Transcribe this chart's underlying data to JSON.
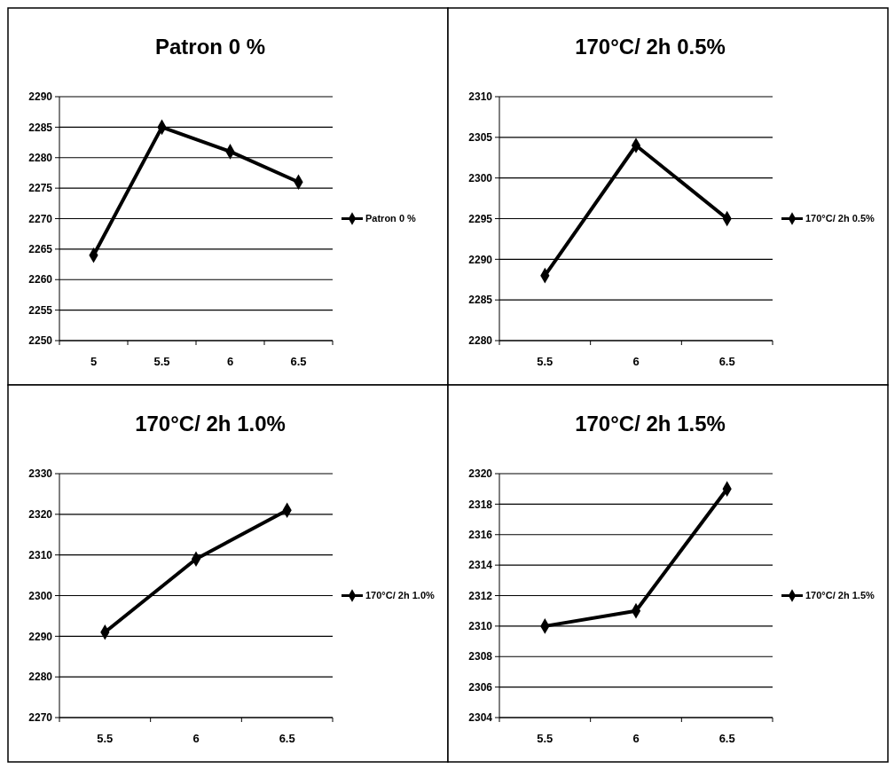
{
  "chart_data": [
    {
      "type": "line",
      "title": "Patron 0 %",
      "categories": [
        "5",
        "5.5",
        "6",
        "6.5"
      ],
      "series": [
        {
          "name": "Patron 0 %",
          "color": "#000000",
          "values": [
            2264,
            2285,
            2281,
            2276
          ]
        }
      ],
      "ylim": [
        2250,
        2290
      ],
      "yticks": [
        2250,
        2255,
        2260,
        2265,
        2270,
        2275,
        2280,
        2285,
        2290
      ],
      "grid": "y",
      "legend": "right",
      "marker": "diamond"
    },
    {
      "type": "line",
      "title": "170°C/ 2h 0.5%",
      "categories": [
        "5.5",
        "6",
        "6.5"
      ],
      "series": [
        {
          "name": "170°C/ 2h 0.5%",
          "color": "#000000",
          "values": [
            2288,
            2304,
            2295
          ]
        }
      ],
      "ylim": [
        2280,
        2310
      ],
      "yticks": [
        2280,
        2285,
        2290,
        2295,
        2300,
        2305,
        2310
      ],
      "grid": "y",
      "legend": "right",
      "marker": "diamond"
    },
    {
      "type": "line",
      "title": "170°C/ 2h  1.0%",
      "categories": [
        "5.5",
        "6",
        "6.5"
      ],
      "series": [
        {
          "name": "170°C/ 2h  1.0%",
          "color": "#000000",
          "values": [
            2291,
            2309,
            2321
          ]
        }
      ],
      "ylim": [
        2270,
        2330
      ],
      "yticks": [
        2270,
        2280,
        2290,
        2300,
        2310,
        2320,
        2330
      ],
      "grid": "y",
      "legend": "right",
      "marker": "diamond"
    },
    {
      "type": "line",
      "title": "170°C/ 2h 1.5%",
      "categories": [
        "5.5",
        "6",
        "6.5"
      ],
      "series": [
        {
          "name": "170°C/ 2h 1.5%",
          "color": "#000000",
          "values": [
            2310,
            2311,
            2319
          ]
        }
      ],
      "ylim": [
        2304,
        2320
      ],
      "yticks": [
        2304,
        2306,
        2308,
        2310,
        2312,
        2314,
        2316,
        2318,
        2320
      ],
      "grid": "y",
      "legend": "right",
      "marker": "diamond"
    }
  ]
}
